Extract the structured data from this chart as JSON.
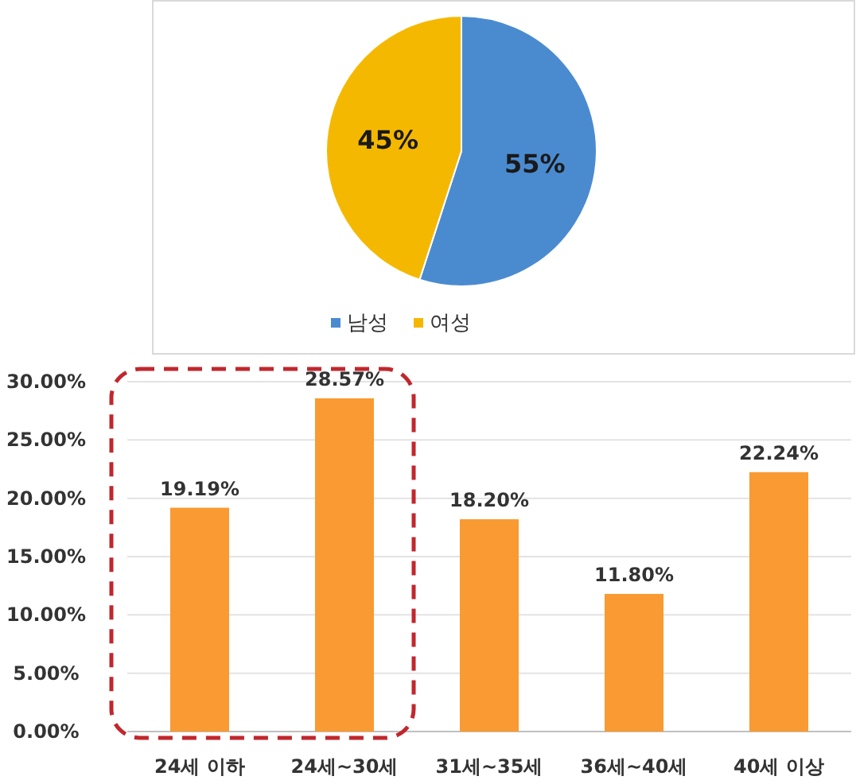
{
  "chart_data": [
    {
      "type": "pie",
      "categories": [
        "남성",
        "여성"
      ],
      "values": [
        55,
        45
      ],
      "colors": [
        "#4a8bd0",
        "#f5b800"
      ],
      "value_labels": [
        "55%",
        "45%"
      ],
      "legend": "bottom"
    },
    {
      "type": "bar",
      "categories": [
        "24세 이하",
        "24세~30세",
        "31세~35세",
        "36세~40세",
        "40세 이상"
      ],
      "values": [
        19.19,
        28.57,
        18.2,
        11.8,
        22.24
      ],
      "color": "#f99a32",
      "value_labels": [
        "19.19%",
        "28.57%",
        "18.20%",
        "11.80%",
        "22.24%"
      ],
      "ylim": [
        0,
        30
      ],
      "yticks": [
        {
          "value": 0,
          "label": "0.00%"
        },
        {
          "value": 5,
          "label": "5.00%"
        },
        {
          "value": 10,
          "label": "10.00%"
        },
        {
          "value": 15,
          "label": "15.00%"
        },
        {
          "value": 20,
          "label": "20.00%"
        },
        {
          "value": 25,
          "label": "25.00%"
        },
        {
          "value": 30,
          "label": "30.00%"
        }
      ],
      "grid": "y"
    }
  ]
}
